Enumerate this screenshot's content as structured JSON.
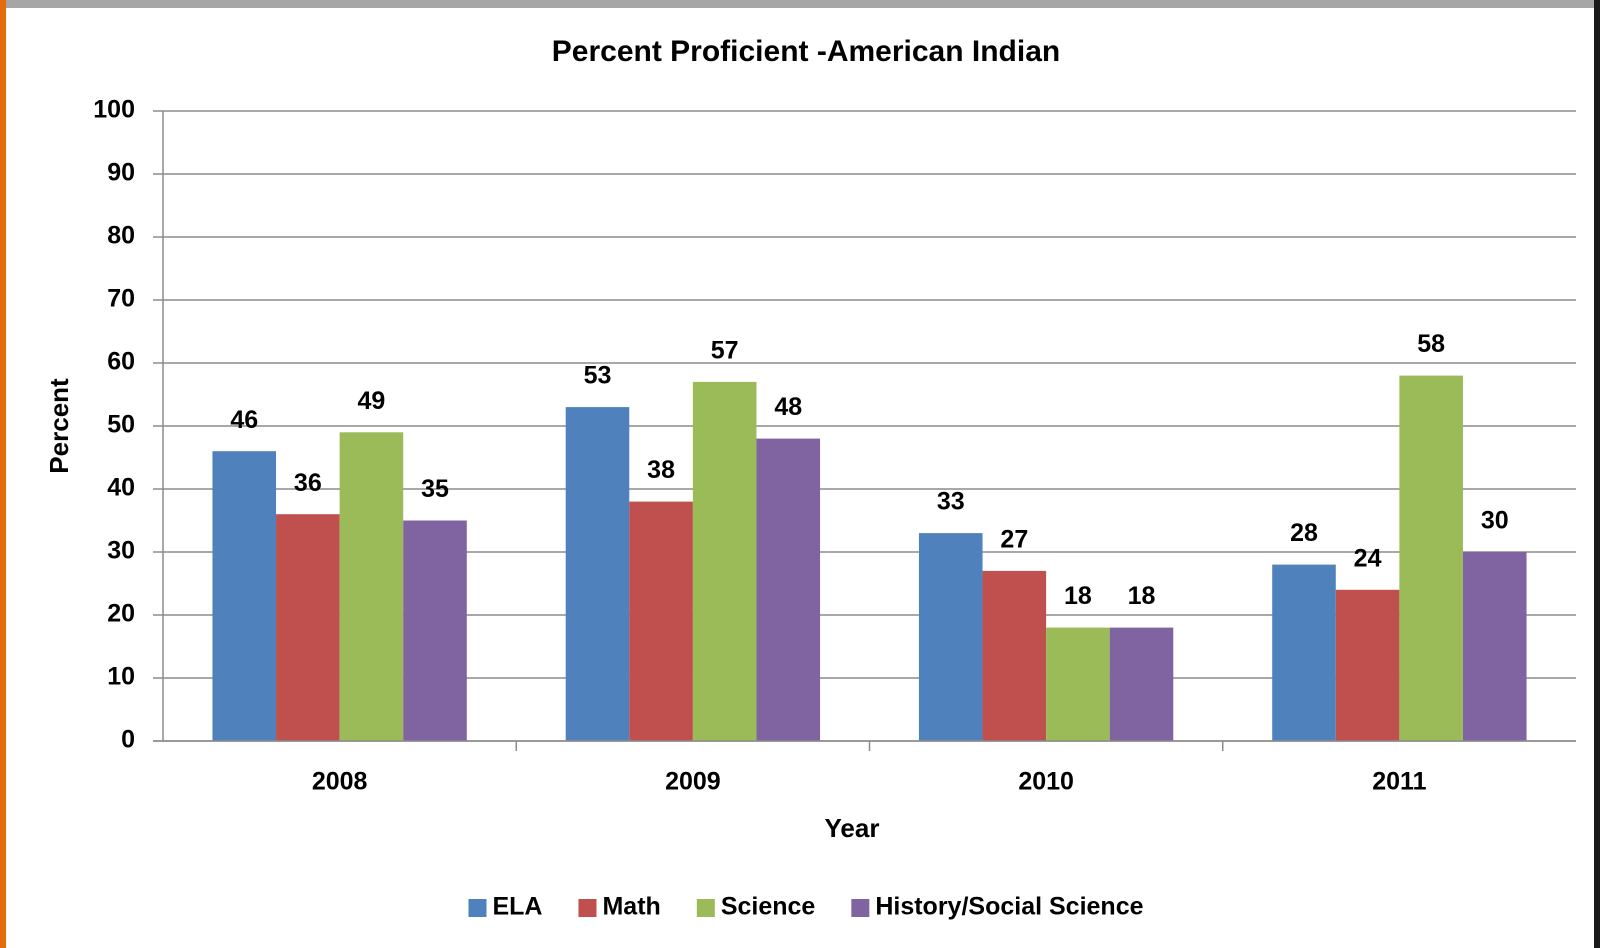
{
  "chart_data": {
    "type": "bar",
    "title": "Percent Proficient -American Indian",
    "x_label": "Year",
    "y_label": "Percent",
    "categories": [
      "2008",
      "2009",
      "2010",
      "2011"
    ],
    "series": [
      {
        "name": "ELA",
        "color": "#4f81bd",
        "values": [
          46,
          53,
          33,
          28
        ]
      },
      {
        "name": "Math",
        "color": "#c0504d",
        "values": [
          36,
          38,
          27,
          24
        ]
      },
      {
        "name": "Science",
        "color": "#9bbb59",
        "values": [
          49,
          57,
          18,
          58
        ]
      },
      {
        "name": "History/Social Science",
        "color": "#8064a2",
        "values": [
          35,
          48,
          18,
          30
        ]
      }
    ],
    "ylim": [
      0,
      100
    ],
    "yticks": [
      0,
      10,
      20,
      30,
      40,
      50,
      60,
      70,
      80,
      90,
      100
    ],
    "grid": true,
    "legend": "bottom"
  }
}
